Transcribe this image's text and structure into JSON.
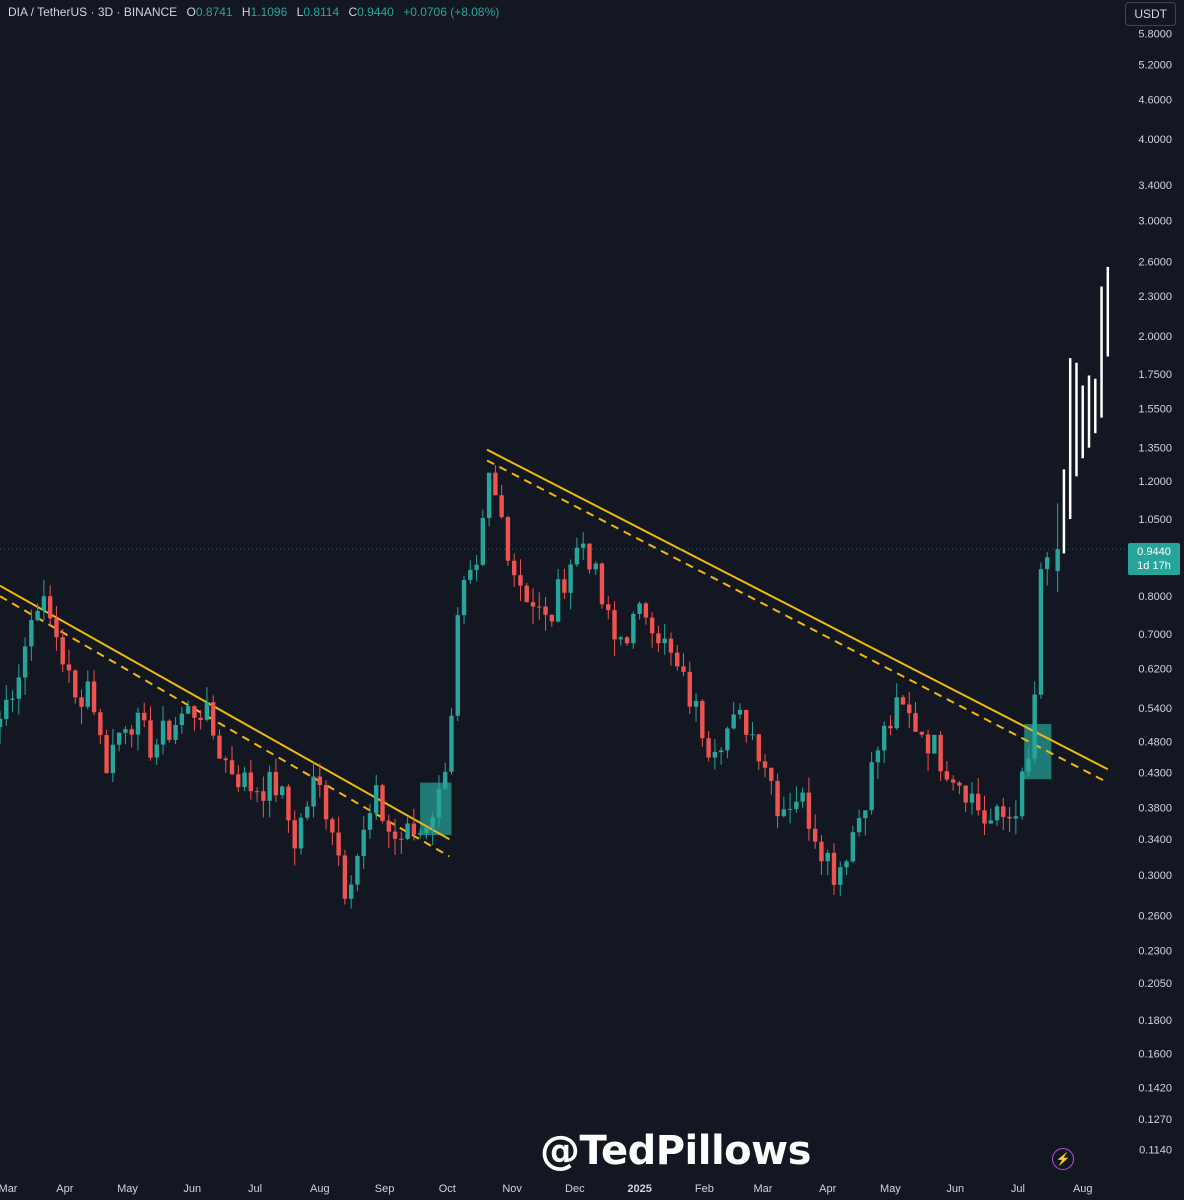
{
  "header": {
    "symbol": "DIA / TetherUS · 3D · BINANCE",
    "o_label": "O",
    "o_value": "0.8741",
    "h_label": "H",
    "h_value": "1.1096",
    "l_label": "L",
    "l_value": "0.8114",
    "c_label": "C",
    "c_value": "0.9440",
    "change": "+0.0706 (+8.08%)"
  },
  "currency": "USDT",
  "last_price": {
    "value": "0.9440",
    "countdown": "1d 17h"
  },
  "watermark": "@TedPillows",
  "colors": {
    "background": "#131722",
    "up": "#26a69a",
    "down": "#ef5350",
    "future": "#ffffff",
    "trendline": "#f0b90b",
    "zone": "#26a69a"
  },
  "chart_data": {
    "type": "candlestick",
    "y_scale": "log",
    "ylim": [
      0.108,
      6.3
    ],
    "y_ticks": [
      "5.8000",
      "5.2000",
      "4.6000",
      "4.0000",
      "3.4000",
      "3.0000",
      "2.6000",
      "2.3000",
      "2.0000",
      "1.7500",
      "1.5500",
      "1.3500",
      "1.2000",
      "1.0500",
      "0.8000",
      "0.7000",
      "0.6200",
      "0.5400",
      "0.4800",
      "0.4300",
      "0.3800",
      "0.3400",
      "0.3000",
      "0.2600",
      "0.2300",
      "0.2050",
      "0.1800",
      "0.1600",
      "0.1420",
      "0.1270",
      "0.1140"
    ],
    "x_ticks": [
      "Mar",
      "Apr",
      "May",
      "Jun",
      "Jul",
      "Aug",
      "Sep",
      "Oct",
      "Nov",
      "Dec",
      "2025",
      "Feb",
      "Mar",
      "Apr",
      "May",
      "Jun",
      "Jul",
      "Aug"
    ],
    "x_range": [
      "2024-03-01",
      "2025-08-15"
    ],
    "anchors": [
      [
        "2024-03-01",
        0.52
      ],
      [
        "2024-03-10",
        0.62
      ],
      [
        "2024-03-19",
        0.8
      ],
      [
        "2024-03-28",
        0.7
      ],
      [
        "2024-04-06",
        0.55
      ],
      [
        "2024-04-13",
        0.6
      ],
      [
        "2024-04-20",
        0.44
      ],
      [
        "2024-05-01",
        0.53
      ],
      [
        "2024-05-13",
        0.47
      ],
      [
        "2024-05-28",
        0.53
      ],
      [
        "2024-06-06",
        0.54
      ],
      [
        "2024-06-16",
        0.45
      ],
      [
        "2024-06-28",
        0.41
      ],
      [
        "2024-07-12",
        0.41
      ],
      [
        "2024-07-20",
        0.34
      ],
      [
        "2024-07-30",
        0.42
      ],
      [
        "2024-08-07",
        0.36
      ],
      [
        "2024-08-13",
        0.29
      ],
      [
        "2024-08-20",
        0.33
      ],
      [
        "2024-08-28",
        0.39
      ],
      [
        "2024-09-05",
        0.34
      ],
      [
        "2024-09-18",
        0.35
      ],
      [
        "2024-09-28",
        0.4
      ],
      [
        "2024-10-03",
        0.54
      ],
      [
        "2024-10-07",
        0.8
      ],
      [
        "2024-10-15",
        0.85
      ],
      [
        "2024-10-21",
        1.2
      ],
      [
        "2024-10-27",
        1.05
      ],
      [
        "2024-11-02",
        0.88
      ],
      [
        "2024-11-09",
        0.8
      ],
      [
        "2024-11-18",
        0.72
      ],
      [
        "2024-11-28",
        0.9
      ],
      [
        "2024-12-06",
        0.98
      ],
      [
        "2024-12-13",
        0.8
      ],
      [
        "2024-12-20",
        0.68
      ],
      [
        "2024-12-28",
        0.72
      ],
      [
        "2025-01-05",
        0.77
      ],
      [
        "2025-01-15",
        0.65
      ],
      [
        "2025-01-24",
        0.57
      ],
      [
        "2025-02-03",
        0.48
      ],
      [
        "2025-02-12",
        0.5
      ],
      [
        "2025-02-20",
        0.52
      ],
      [
        "2025-03-01",
        0.46
      ],
      [
        "2025-03-09",
        0.38
      ],
      [
        "2025-03-18",
        0.4
      ],
      [
        "2025-03-28",
        0.34
      ],
      [
        "2025-04-05",
        0.3
      ],
      [
        "2025-04-16",
        0.37
      ],
      [
        "2025-04-26",
        0.48
      ],
      [
        "2025-05-05",
        0.54
      ],
      [
        "2025-05-16",
        0.5
      ],
      [
        "2025-05-26",
        0.45
      ],
      [
        "2025-06-06",
        0.41
      ],
      [
        "2025-06-16",
        0.36
      ],
      [
        "2025-06-28",
        0.37
      ],
      [
        "2025-07-05",
        0.43
      ],
      [
        "2025-07-08",
        0.47
      ],
      [
        "2025-07-11",
        0.82
      ],
      [
        "2025-07-17",
        0.94
      ]
    ],
    "last_candles": [
      {
        "date": "2025-07-20",
        "open": 0.8741,
        "high": 1.1096,
        "low": 0.8114,
        "close": 0.944
      }
    ],
    "future_bars": [
      {
        "date": "2025-07-23",
        "high": 1.25,
        "low": 0.93
      },
      {
        "date": "2025-07-26",
        "high": 1.85,
        "low": 1.05
      },
      {
        "date": "2025-07-29",
        "high": 1.82,
        "low": 1.22
      },
      {
        "date": "2025-08-01",
        "high": 1.68,
        "low": 1.3
      },
      {
        "date": "2025-08-04",
        "high": 1.74,
        "low": 1.35
      },
      {
        "date": "2025-08-07",
        "high": 1.72,
        "low": 1.42
      },
      {
        "date": "2025-08-10",
        "high": 2.38,
        "low": 1.5
      },
      {
        "date": "2025-08-13",
        "high": 2.55,
        "low": 1.86
      }
    ],
    "trendlines": [
      {
        "style": "solid",
        "from": [
          "2024-03-01",
          0.83
        ],
        "to": [
          "2024-10-02",
          0.34
        ]
      },
      {
        "style": "dashed",
        "from": [
          "2024-03-01",
          0.8
        ],
        "to": [
          "2024-10-02",
          0.32
        ]
      },
      {
        "style": "solid",
        "from": [
          "2024-10-20",
          1.34
        ],
        "to": [
          "2025-08-13",
          0.435
        ]
      },
      {
        "style": "dashed",
        "from": [
          "2024-10-20",
          1.29
        ],
        "to": [
          "2025-08-13",
          0.415
        ]
      }
    ],
    "breakout_zones": [
      {
        "from": "2024-09-18",
        "to": "2024-10-03",
        "high": 0.415,
        "low": 0.345
      },
      {
        "from": "2025-07-04",
        "to": "2025-07-17",
        "high": 0.51,
        "low": 0.42
      }
    ]
  }
}
